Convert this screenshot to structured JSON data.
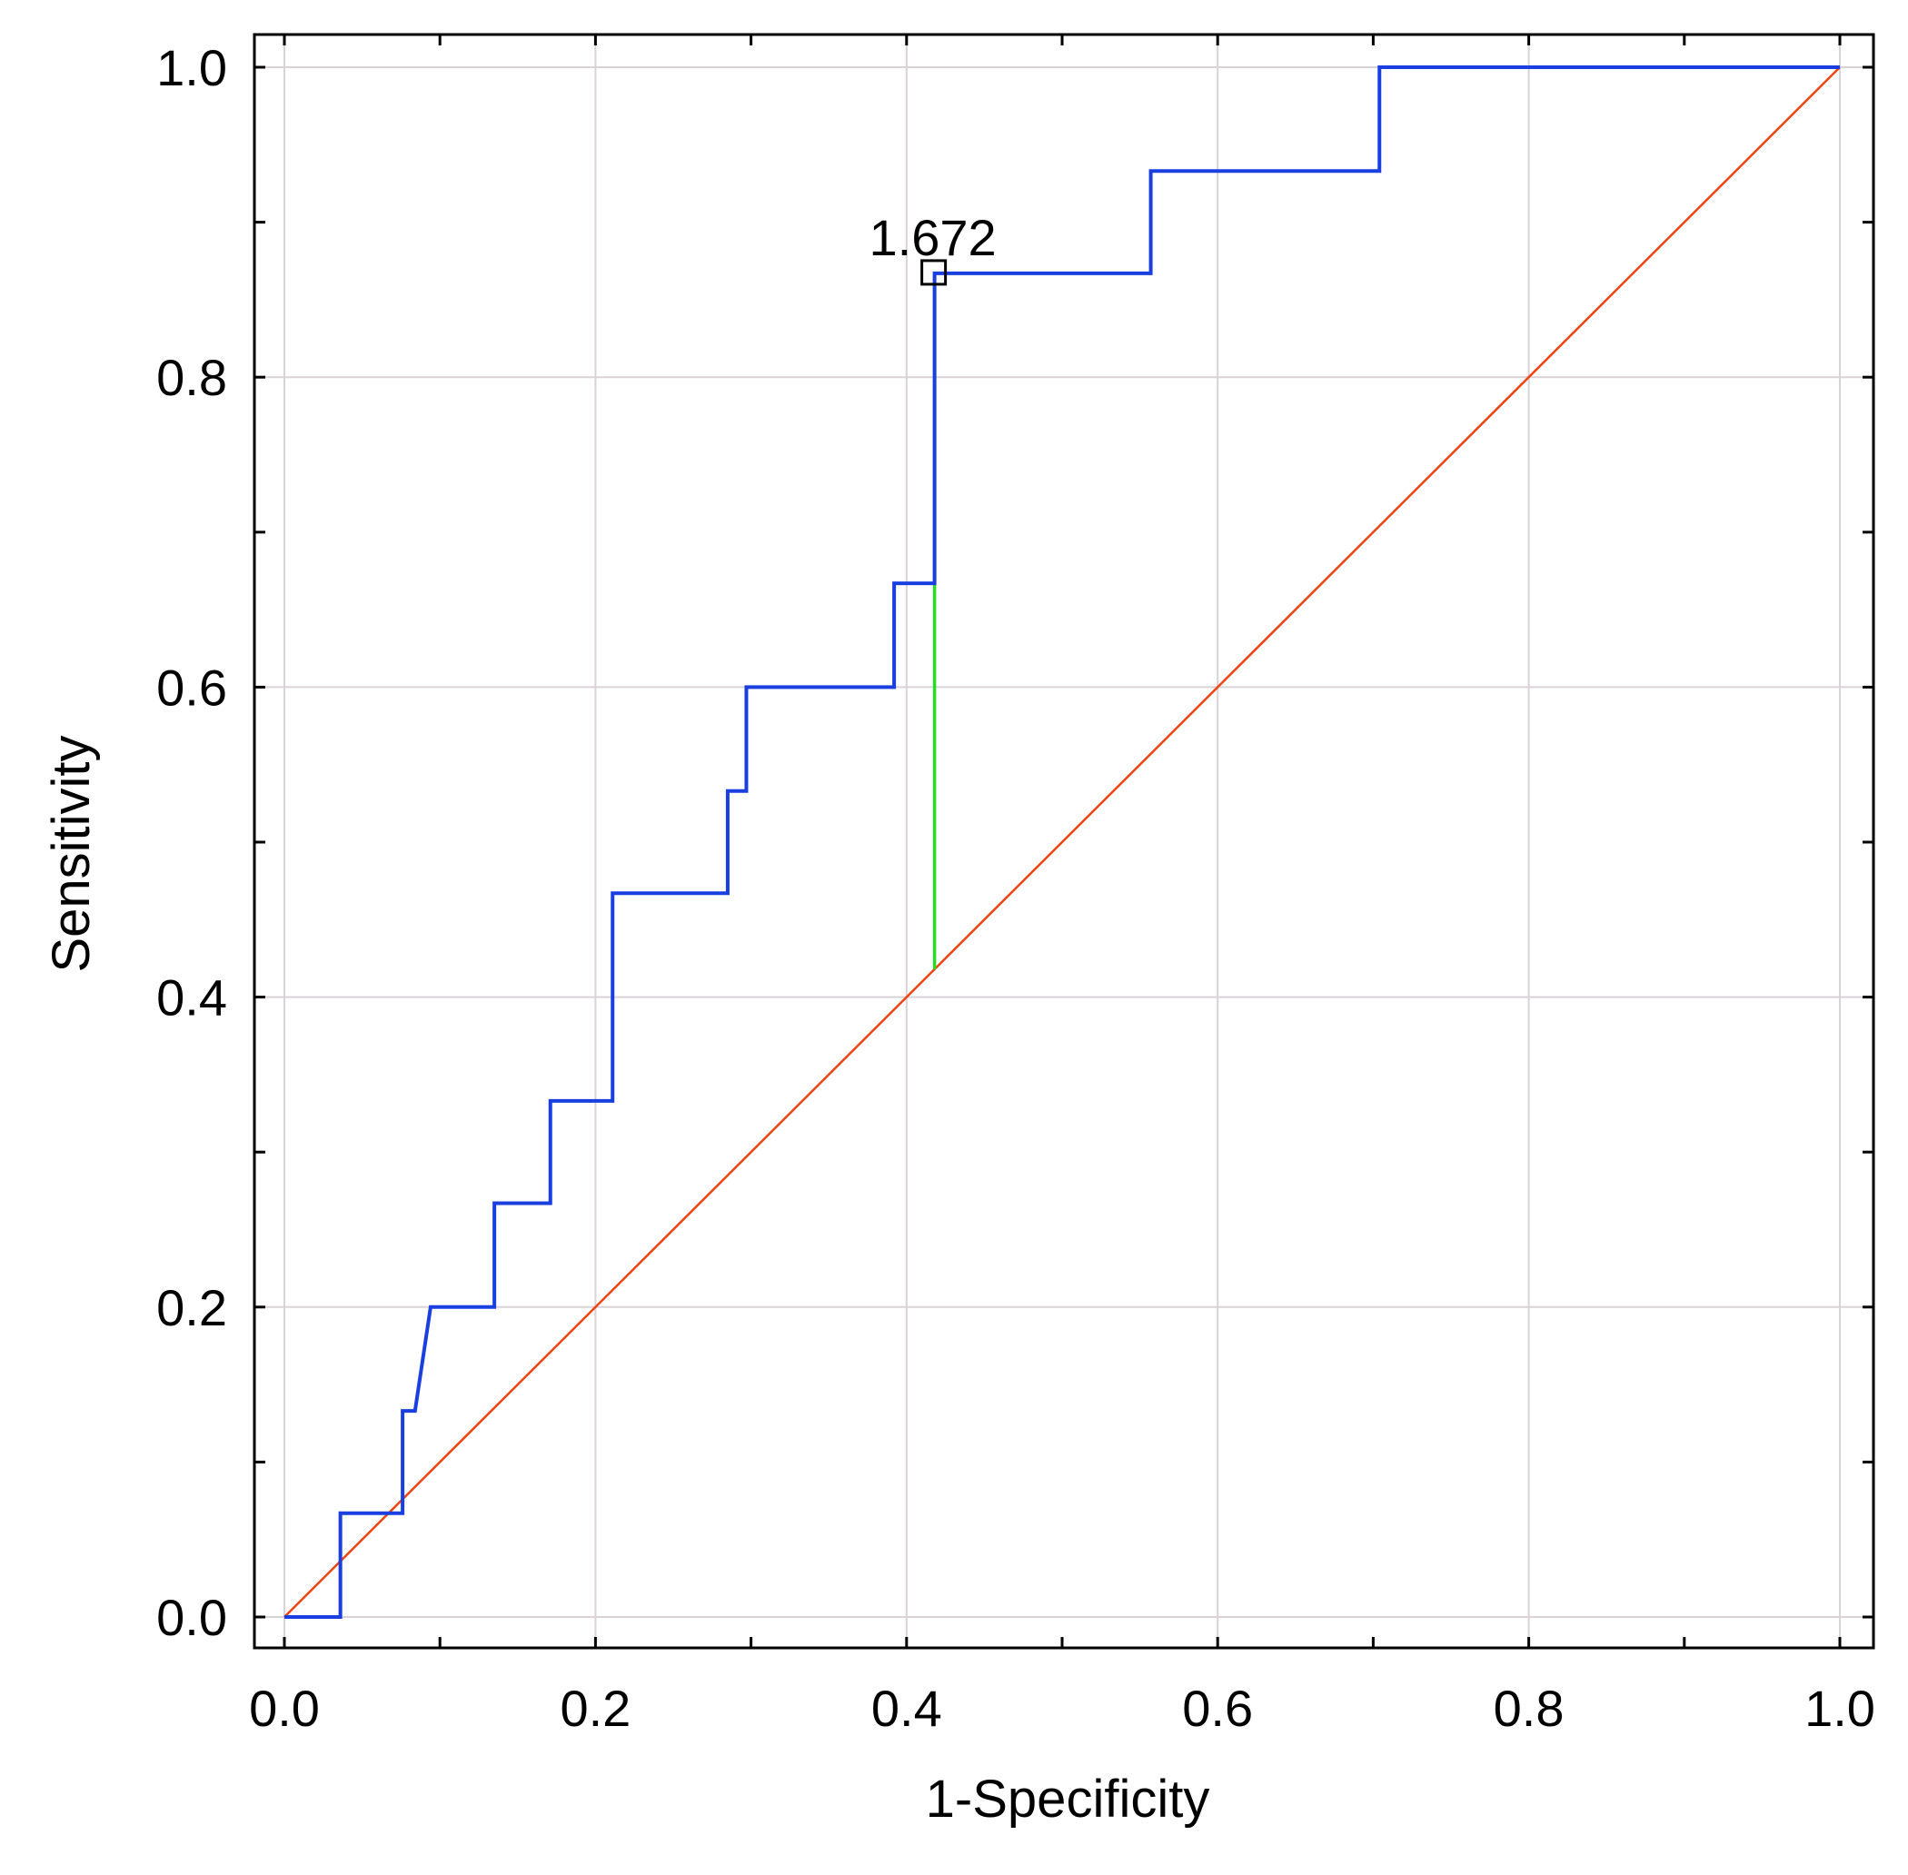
{
  "chart_data": {
    "type": "line",
    "xlabel": "1-Specificity",
    "ylabel": "Sensitivity",
    "xlim": [
      0,
      1
    ],
    "ylim": [
      0,
      1
    ],
    "x_ticks": [
      "0.0",
      "0.2",
      "0.4",
      "0.6",
      "0.8",
      "1.0"
    ],
    "y_ticks": [
      "0.0",
      "0.2",
      "0.4",
      "0.6",
      "0.8",
      "1.0"
    ],
    "grid": true,
    "series": [
      {
        "color": "#1a3fe0",
        "x": [
          0,
          0.036,
          0.036,
          0.076,
          0.076,
          0.084,
          0.094,
          0.135,
          0.135,
          0.171,
          0.171,
          0.211,
          0.211,
          0.285,
          0.285,
          0.297,
          0.297,
          0.392,
          0.392,
          0.418,
          0.418,
          0.557,
          0.557,
          0.704,
          0.704,
          1.0
        ],
        "y": [
          0,
          0,
          0.067,
          0.067,
          0.133,
          0.133,
          0.2,
          0.2,
          0.267,
          0.267,
          0.333,
          0.333,
          0.467,
          0.467,
          0.533,
          0.533,
          0.6,
          0.6,
          0.667,
          0.667,
          0.867,
          0.867,
          0.933,
          0.933,
          1.0,
          1.0
        ]
      },
      {
        "color": "#ee4411",
        "x": [
          0,
          1
        ],
        "y": [
          0,
          1
        ]
      }
    ],
    "cutoff": {
      "label": "1.672",
      "x": 0.418,
      "y_top": 0.867,
      "y_bottom": 0.418,
      "color": "#22dd22"
    },
    "colors": {
      "axis": "#000000",
      "grid": "#d9d2d6"
    }
  }
}
